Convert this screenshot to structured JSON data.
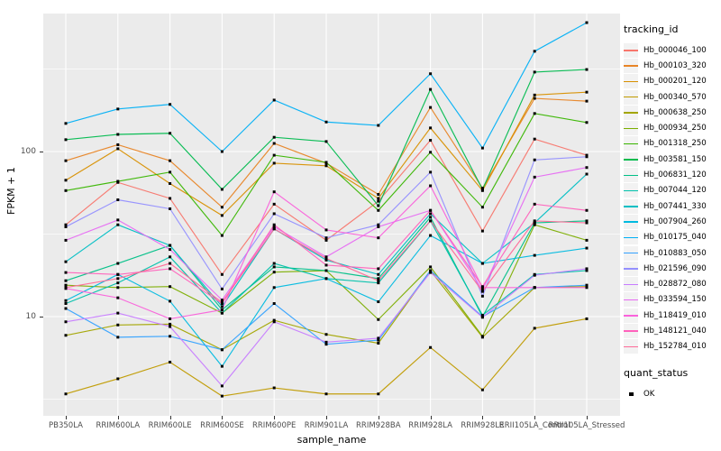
{
  "chart_data": {
    "type": "line",
    "title": "",
    "xlabel": "sample_name",
    "ylabel": "FPKM + 1",
    "x_categories": [
      "PB350LA",
      "RRIM600LA",
      "RRIM600LE",
      "RRIM600SE",
      "RRIM600PE",
      "RRIM901LA",
      "RRIM928BA",
      "RRIM928LA",
      "RRIM928LE",
      "RRII105LA_Control",
      "RRII105LA_Stressed"
    ],
    "y_axis": {
      "scale": "log10",
      "tick_labels": [
        "100",
        "10"
      ],
      "tick_values": [
        100,
        10
      ],
      "minor_gridlines": [
        316,
        31.6,
        3.16
      ],
      "range": [
        2.5,
        686
      ]
    },
    "grid": "on",
    "panel_bg": "#EBEBEB",
    "grid_color": "#FFFFFF",
    "marker_color": "#000000",
    "legend_position": "right",
    "legend": {
      "color_title": "tracking_id",
      "shape_title": "quant_status",
      "shape_items": [
        {
          "label": "OK",
          "marker": "black-square"
        }
      ]
    },
    "series": [
      {
        "name": "Hb_000046_100",
        "color": "#F8766D",
        "values": [
          36,
          65,
          52,
          18,
          48,
          29,
          50,
          117,
          33,
          119,
          95
        ]
      },
      {
        "name": "Hb_000103_320",
        "color": "#E88526",
        "values": [
          88,
          110,
          88,
          46,
          112,
          85,
          55,
          185,
          60,
          210,
          202
        ]
      },
      {
        "name": "Hb_000201_120",
        "color": "#D89000",
        "values": [
          67,
          104,
          64,
          41,
          85,
          82,
          52,
          139,
          58,
          220,
          229
        ]
      },
      {
        "name": "Hb_000340_570",
        "color": "#C09B00",
        "values": [
          3.4,
          4.2,
          5.3,
          3.3,
          3.7,
          3.4,
          3.4,
          6.5,
          3.6,
          8.5,
          9.7
        ]
      },
      {
        "name": "Hb_000638_250",
        "color": "#A3A500",
        "values": [
          7.7,
          8.9,
          9.0,
          6.3,
          9.5,
          7.8,
          6.9,
          19,
          7.5,
          15,
          15.2
        ]
      },
      {
        "name": "Hb_000934_250",
        "color": "#7CAE00",
        "values": [
          15.5,
          15,
          15.2,
          10.5,
          18.6,
          19,
          9.6,
          20,
          7.6,
          36,
          29
        ]
      },
      {
        "name": "Hb_001318_250",
        "color": "#39B600",
        "values": [
          58,
          66,
          75,
          31,
          95,
          86,
          44,
          99,
          46,
          170,
          150
        ]
      },
      {
        "name": "Hb_003581_150",
        "color": "#00BB4E",
        "values": [
          118,
          127,
          129,
          59,
          122,
          115,
          47,
          238,
          59,
          303,
          314
        ]
      },
      {
        "name": "Hb_006831_120",
        "color": "#00C087",
        "values": [
          16.5,
          21,
          27,
          11,
          20,
          19,
          17,
          40,
          10,
          37,
          38
        ]
      },
      {
        "name": "Hb_007044_120",
        "color": "#00C1AB",
        "values": [
          12,
          16,
          23,
          10.5,
          21,
          17,
          16,
          38,
          10.2,
          18,
          19
        ]
      },
      {
        "name": "Hb_007441_330",
        "color": "#00BFC4",
        "values": [
          21.5,
          36,
          27,
          11.5,
          34,
          22,
          18,
          42,
          21,
          37,
          73
        ]
      },
      {
        "name": "Hb_007904_260",
        "color": "#00BAE0",
        "values": [
          12.5,
          18,
          12.4,
          5.0,
          15,
          17,
          12.3,
          31,
          21,
          23.5,
          26
        ]
      },
      {
        "name": "Hb_010175_040",
        "color": "#00B0F6",
        "values": [
          148,
          181,
          193,
          100,
          205,
          151,
          144,
          296,
          105,
          405,
          604
        ]
      },
      {
        "name": "Hb_010883_050",
        "color": "#35A2FF",
        "values": [
          11.2,
          7.5,
          7.6,
          6.3,
          12,
          6.8,
          7.2,
          19,
          10,
          15,
          15.5
        ]
      },
      {
        "name": "Hb_021596_090",
        "color": "#9590FF",
        "values": [
          35,
          51,
          45,
          14.7,
          42,
          30,
          36,
          75,
          13.3,
          89,
          93
        ]
      },
      {
        "name": "Hb_028872_080",
        "color": "#C77CFF",
        "values": [
          9.3,
          10.5,
          8.7,
          3.8,
          9.3,
          7.0,
          7.4,
          18.5,
          9.9,
          17.8,
          19.5
        ]
      },
      {
        "name": "Hb_033594_150",
        "color": "#E76BF3",
        "values": [
          29,
          38.5,
          25.5,
          12.6,
          35,
          23,
          35,
          44,
          14.5,
          70,
          80
        ]
      },
      {
        "name": "Hb_118419_010",
        "color": "#FA62DB",
        "values": [
          14.8,
          13,
          9.7,
          11,
          57,
          33.5,
          30,
          62,
          15,
          15,
          15
        ]
      },
      {
        "name": "Hb_148121_040",
        "color": "#FF62BC",
        "values": [
          18.5,
          18,
          19.5,
          12,
          36,
          20.5,
          19.5,
          44,
          15.2,
          48,
          44
        ]
      },
      {
        "name": "Hb_152784_010",
        "color": "#FF6A98",
        "values": [
          15,
          17,
          21,
          12.2,
          34,
          22.5,
          16.5,
          38,
          14.2,
          38,
          37
        ]
      }
    ]
  }
}
